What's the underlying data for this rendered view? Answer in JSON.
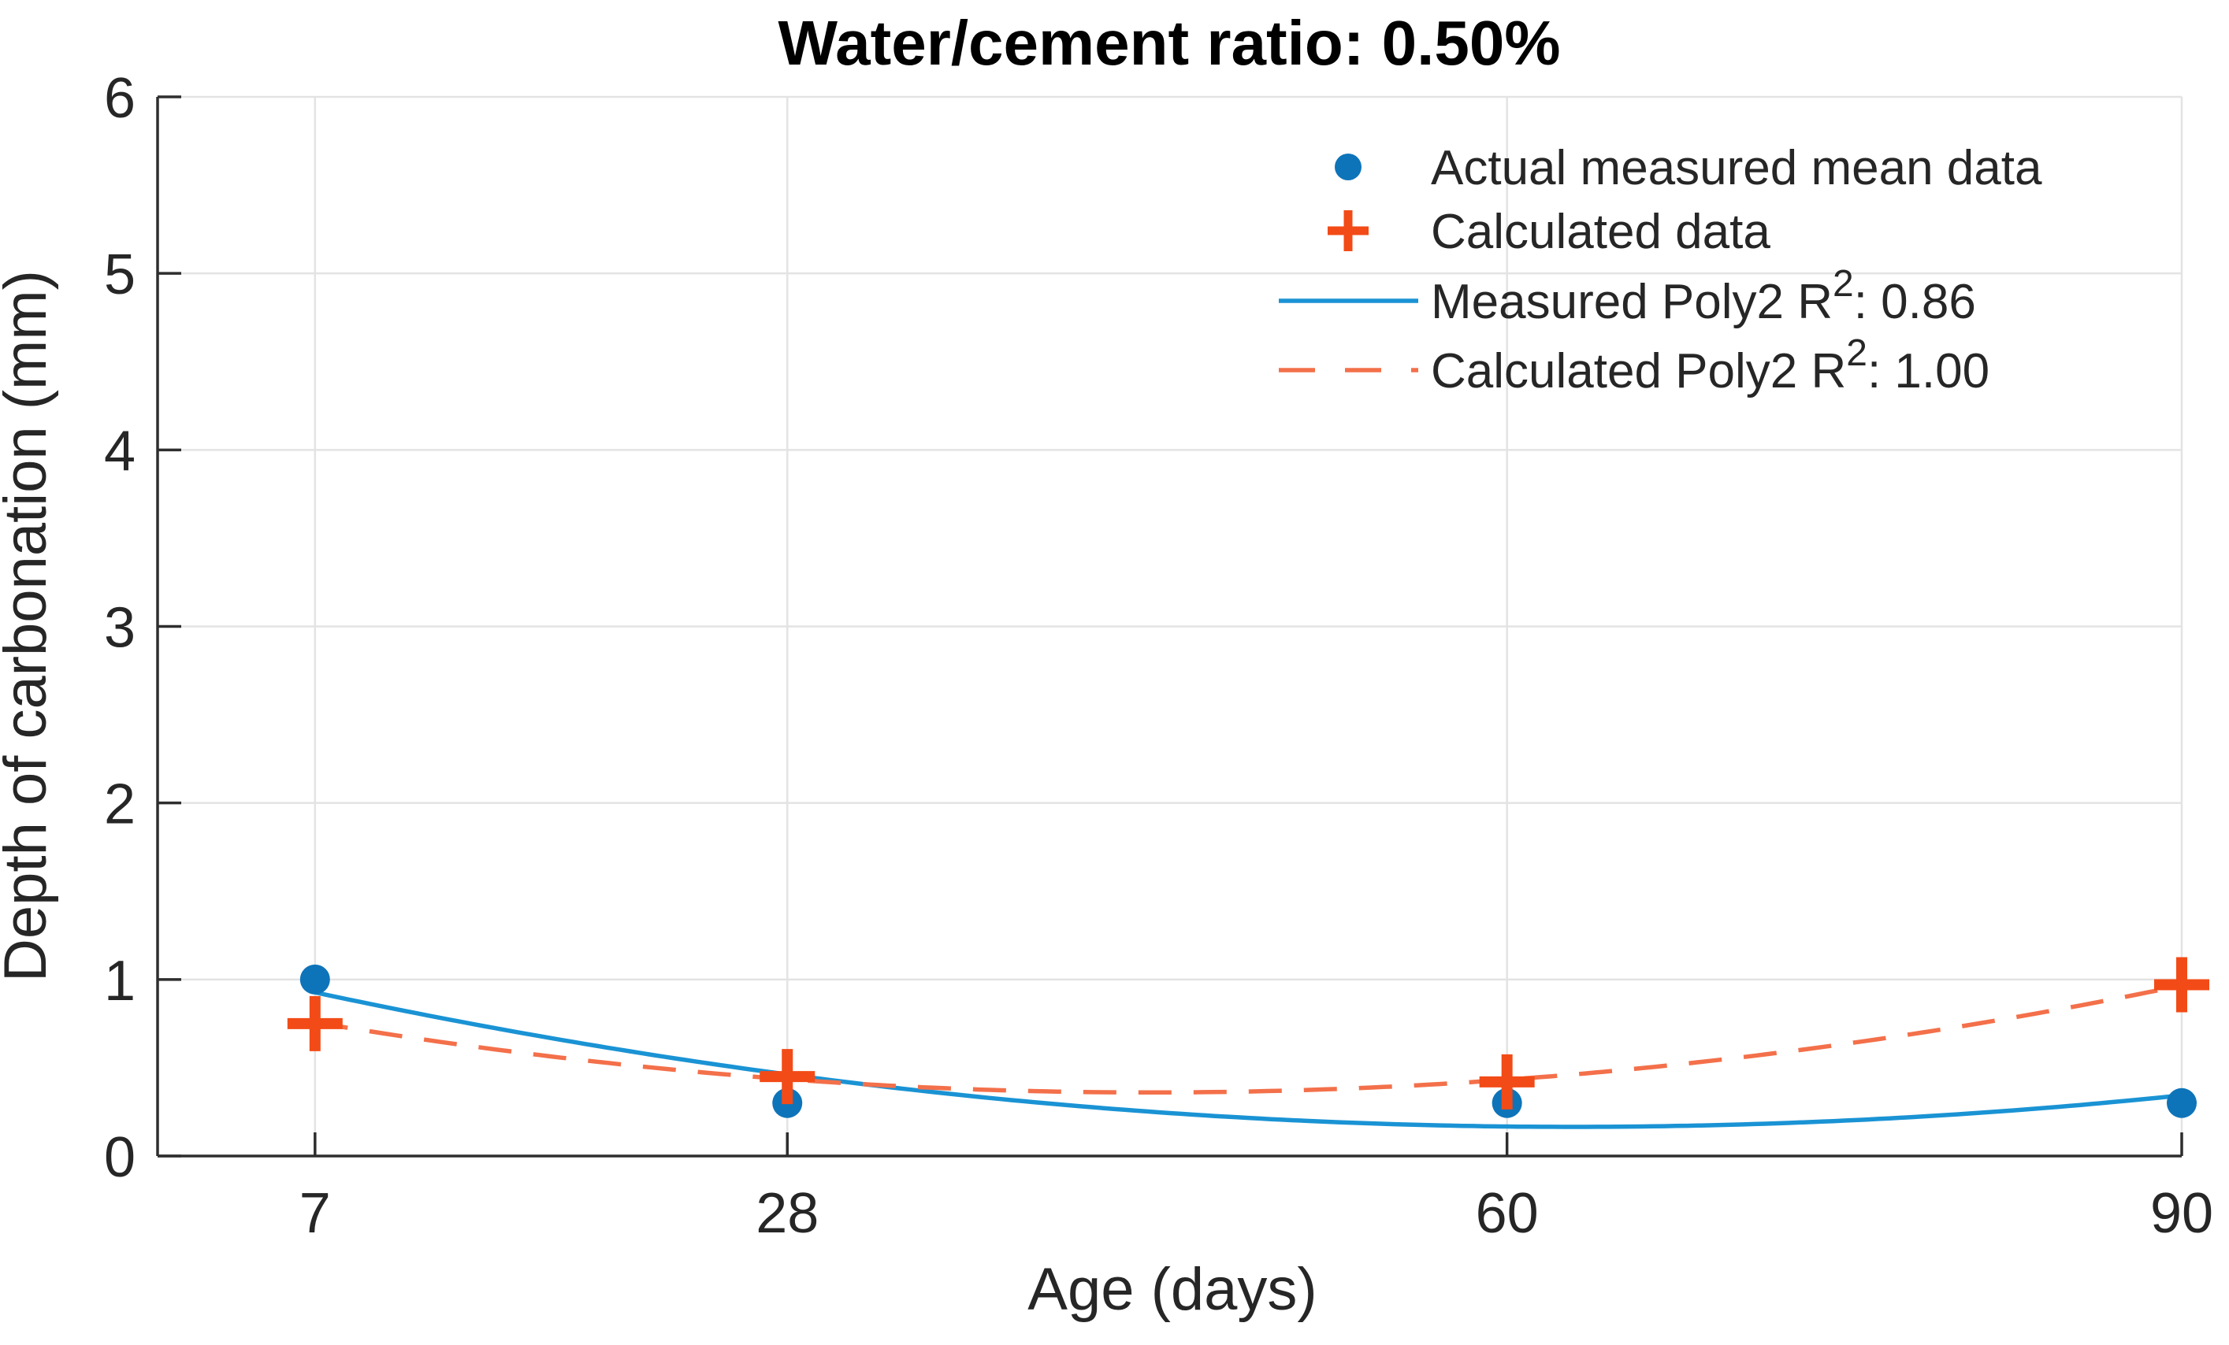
{
  "chart_data": {
    "type": "scatter",
    "title": "Water/cement ratio: 0.50%",
    "xlabel": "Age (days)",
    "ylabel": "Depth of carbonation (mm)",
    "xlim": [
      0,
      90
    ],
    "ylim": [
      0,
      6
    ],
    "xticks": [
      7,
      28,
      60,
      90
    ],
    "yticks": [
      0,
      1,
      2,
      3,
      4,
      5,
      6
    ],
    "grid": true,
    "legend_position": "top-right-inside",
    "colors": {
      "measured_marker": "#0e74b9",
      "measured_line": "#1a93d4",
      "calculated_marker": "#f24b17",
      "calculated_line": "#f3704a",
      "grid": "#e3e3e3",
      "axis": "#2e2e2e",
      "text": "#262626",
      "title": "#000000"
    },
    "series": [
      {
        "name": "Actual measured mean data",
        "type": "scatter",
        "marker": "circle",
        "x": [
          7,
          28,
          60,
          90
        ],
        "y": [
          1.0,
          0.3,
          0.3,
          0.3
        ]
      },
      {
        "name": "Calculated data",
        "type": "scatter",
        "marker": "plus",
        "x": [
          7,
          28,
          60,
          90
        ],
        "y": [
          0.75,
          0.45,
          0.42,
          0.97
        ]
      },
      {
        "name": "Measured Poly2 fit",
        "type": "line",
        "style": "solid",
        "poly2": [
          0.0002436,
          -0.030655,
          1.1295
        ],
        "x_range": [
          7,
          90
        ],
        "r_squared": "0.86"
      },
      {
        "name": "Calculated Poly2 fit",
        "type": "line",
        "style": "dashed",
        "poly2": [
          0.000288,
          -0.025413,
          0.9206
        ],
        "x_range": [
          7,
          90
        ],
        "r_squared": "1.00"
      }
    ],
    "legend": {
      "items": [
        {
          "swatch": "circle",
          "label": "Actual measured mean data"
        },
        {
          "swatch": "plus",
          "label": "Calculated data"
        },
        {
          "swatch": "solid-line",
          "label_prefix": "Measured Poly2 R",
          "label_sup": "2",
          "label_suffix": ": 0.86"
        },
        {
          "swatch": "dashed-line",
          "label_prefix": "Calculated Poly2 R",
          "label_sup": "2",
          "label_suffix": ": 1.00"
        }
      ]
    }
  }
}
